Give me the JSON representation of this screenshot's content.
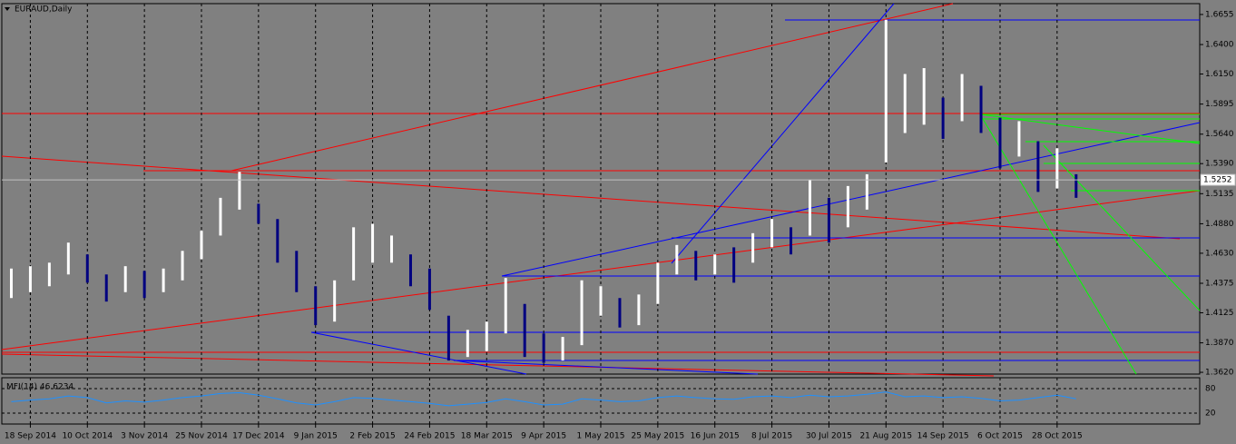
{
  "chart_data": [
    {
      "type": "ohlc",
      "title": "EURAUD,Daily",
      "categories": [
        null,
        "18 Sep 2014",
        null,
        null,
        "10 Oct 2014",
        null,
        null,
        "3 Nov 2014",
        null,
        null,
        "25 Nov 2014",
        null,
        null,
        "17 Dec 2014",
        null,
        null,
        "9 Jan 2015",
        null,
        null,
        "2 Feb 2015",
        null,
        null,
        "24 Feb 2015",
        null,
        null,
        "18 Mar 2015",
        null,
        null,
        "9 Apr 2015",
        null,
        null,
        "1 May 2015",
        null,
        null,
        "25 May 2015",
        null,
        null,
        "16 Jun 2015",
        null,
        null,
        "8 Jul 2015",
        null,
        null,
        "30 Jul 2015",
        null,
        null,
        "21 Aug 2015",
        null,
        null,
        "14 Sep 2015",
        null,
        null,
        "6 Oct 2015",
        null,
        null,
        "28 Oct 2015",
        null,
        null,
        null,
        null,
        null,
        null,
        null
      ],
      "high": [
        1.45,
        1.452,
        1.455,
        1.472,
        1.462,
        1.445,
        1.452,
        1.448,
        1.45,
        1.465,
        1.482,
        1.51,
        1.532,
        1.505,
        1.492,
        1.465,
        1.435,
        1.44,
        1.485,
        1.488,
        1.478,
        1.462,
        1.45,
        1.41,
        1.398,
        1.405,
        1.442,
        1.42,
        1.395,
        1.392,
        1.44,
        1.435,
        1.425,
        1.428,
        1.455,
        1.47,
        1.465,
        1.462,
        1.468,
        1.48,
        1.492,
        1.485,
        1.525,
        1.51,
        1.52,
        1.53,
        1.661,
        1.615,
        1.62,
        1.595,
        1.615,
        1.605,
        1.578,
        1.575,
        1.558,
        1.552,
        1.53,
        null,
        null,
        null,
        null,
        null,
        null
      ],
      "low": [
        1.425,
        1.43,
        1.435,
        1.445,
        1.438,
        1.422,
        1.43,
        1.425,
        1.43,
        1.44,
        1.458,
        1.478,
        1.5,
        1.488,
        1.455,
        1.43,
        1.402,
        1.405,
        1.44,
        1.455,
        1.455,
        1.435,
        1.415,
        1.372,
        1.375,
        1.38,
        1.395,
        1.375,
        1.37,
        1.372,
        1.385,
        1.41,
        1.4,
        1.402,
        1.42,
        1.445,
        1.44,
        1.445,
        1.438,
        1.455,
        1.468,
        1.462,
        1.478,
        1.472,
        1.485,
        1.5,
        1.54,
        1.565,
        1.572,
        1.56,
        1.575,
        1.565,
        1.535,
        1.545,
        1.515,
        1.518,
        1.51,
        null,
        null,
        null,
        null,
        null,
        null
      ],
      "up_color": "#ffffff",
      "down_color": "#000080",
      "current_price": 1.5252,
      "ylim": [
        1.3605,
        1.6747
      ],
      "yticks": [
        {
          "value": 1.362,
          "label": "1.3620"
        },
        {
          "value": 1.387,
          "label": "1.3870"
        },
        1.4125,
        1.4375,
        {
          "value": 1.463,
          "label": "1.4630"
        },
        {
          "value": 1.488,
          "label": "1.4880"
        },
        1.5135,
        {
          "value": 1.539,
          "label": "1.5390"
        },
        {
          "value": 1.564,
          "label": "1.5640"
        },
        1.5895,
        {
          "value": 1.615,
          "label": "1.6150"
        },
        {
          "value": 1.64,
          "label": "1.6400"
        },
        1.6655
      ],
      "grid": true
    },
    {
      "type": "line",
      "title": "MFI(14) 46.6234",
      "color": "#1e90ff",
      "values": [
        48,
        52,
        55,
        62,
        58,
        45,
        50,
        47,
        52,
        58,
        62,
        68,
        70,
        64,
        55,
        45,
        40,
        48,
        58,
        56,
        52,
        48,
        44,
        38,
        42,
        46,
        55,
        48,
        40,
        42,
        55,
        52,
        48,
        50,
        58,
        62,
        58,
        55,
        54,
        60,
        62,
        58,
        64,
        60,
        62,
        66,
        72,
        60,
        62,
        58,
        60,
        56,
        50,
        52,
        58,
        64,
        55,
        null,
        null,
        null,
        null,
        null,
        null
      ],
      "ylim": [
        0,
        100
      ],
      "yticks": [
        80,
        20
      ]
    }
  ]
}
